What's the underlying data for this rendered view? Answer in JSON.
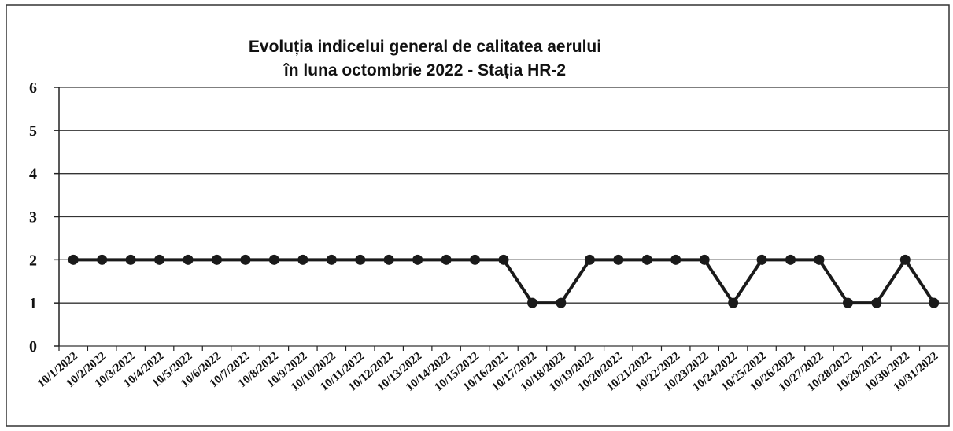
{
  "chart_data": {
    "type": "line",
    "title": [
      "Evoluția indicelui general de calitatea aerului",
      "în luna octombrie 2022 - Stația HR-2"
    ],
    "categories": [
      "10/1/2022",
      "10/2/2022",
      "10/3/2022",
      "10/4/2022",
      "10/5/2022",
      "10/6/2022",
      "10/7/2022",
      "10/8/2022",
      "10/9/2022",
      "10/10/2022",
      "10/11/2022",
      "10/12/2022",
      "10/13/2022",
      "10/14/2022",
      "10/15/2022",
      "10/16/2022",
      "10/17/2022",
      "10/18/2022",
      "10/19/2022",
      "10/20/2022",
      "10/21/2022",
      "10/22/2022",
      "10/23/2022",
      "10/24/2022",
      "10/25/2022",
      "10/26/2022",
      "10/27/2022",
      "10/28/2022",
      "10/29/2022",
      "10/30/2022",
      "10/31/2022"
    ],
    "values": [
      2,
      2,
      2,
      2,
      2,
      2,
      2,
      2,
      2,
      2,
      2,
      2,
      2,
      2,
      2,
      2,
      1,
      1,
      2,
      2,
      2,
      2,
      2,
      1,
      2,
      2,
      2,
      1,
      1,
      2,
      1
    ],
    "color": "#1a1a1a",
    "ylim": [
      0,
      6
    ],
    "yticks": [
      0,
      1,
      2,
      3,
      4,
      5,
      6
    ],
    "grid": true
  }
}
